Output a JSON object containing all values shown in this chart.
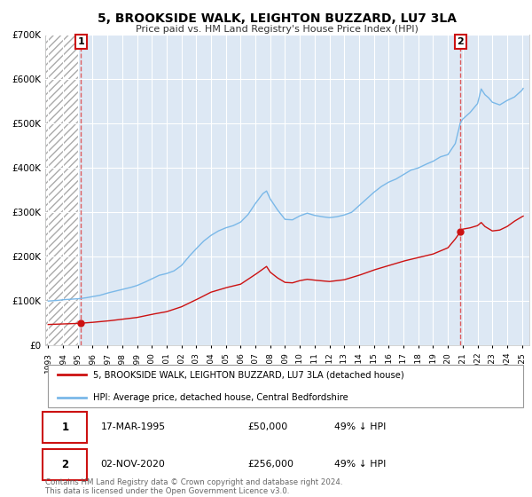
{
  "title": "5, BROOKSIDE WALK, LEIGHTON BUZZARD, LU7 3LA",
  "subtitle": "Price paid vs. HM Land Registry's House Price Index (HPI)",
  "hpi_line_color": "#7ab8e8",
  "price_line_color": "#cc1111",
  "point1_x": 1995.21,
  "point1_y": 50000,
  "point2_x": 2020.84,
  "point2_y": 256000,
  "ylim": [
    0,
    700000
  ],
  "xlim_start": 1992.8,
  "xlim_end": 2025.5,
  "yticks": [
    0,
    100000,
    200000,
    300000,
    400000,
    500000,
    600000,
    700000
  ],
  "ytick_labels": [
    "£0",
    "£100K",
    "£200K",
    "£300K",
    "£400K",
    "£500K",
    "£600K",
    "£700K"
  ],
  "xticks": [
    1993,
    1994,
    1995,
    1996,
    1997,
    1998,
    1999,
    2000,
    2001,
    2002,
    2003,
    2004,
    2005,
    2006,
    2007,
    2008,
    2009,
    2010,
    2011,
    2012,
    2013,
    2014,
    2015,
    2016,
    2017,
    2018,
    2019,
    2020,
    2021,
    2022,
    2023,
    2024,
    2025
  ],
  "legend_line1": "5, BROOKSIDE WALK, LEIGHTON BUZZARD, LU7 3LA (detached house)",
  "legend_line2": "HPI: Average price, detached house, Central Bedfordshire",
  "annotation1_label": "1",
  "annotation1_date": "17-MAR-1995",
  "annotation1_price": "£50,000",
  "annotation1_hpi": "49% ↓ HPI",
  "annotation2_label": "2",
  "annotation2_date": "02-NOV-2020",
  "annotation2_price": "£256,000",
  "annotation2_hpi": "49% ↓ HPI",
  "footer": "Contains HM Land Registry data © Crown copyright and database right 2024.\nThis data is licensed under the Open Government Licence v3.0.",
  "background_plot_color": "#dde8f4"
}
